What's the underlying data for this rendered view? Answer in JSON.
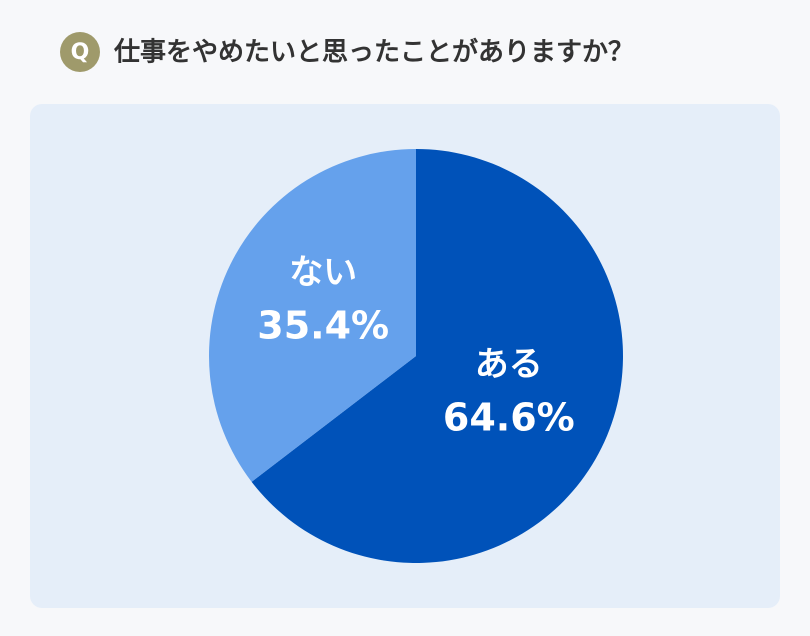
{
  "chart_data": {
    "type": "pie",
    "badge": "Q",
    "title": "仕事をやめたいと思ったことがありますか？",
    "categories": [
      "ある",
      "ない"
    ],
    "values": [
      64.6,
      35.4
    ],
    "value_labels": [
      "64.6%",
      "35.4%"
    ],
    "colors": [
      "#0052b9",
      "#65a1ec"
    ]
  }
}
